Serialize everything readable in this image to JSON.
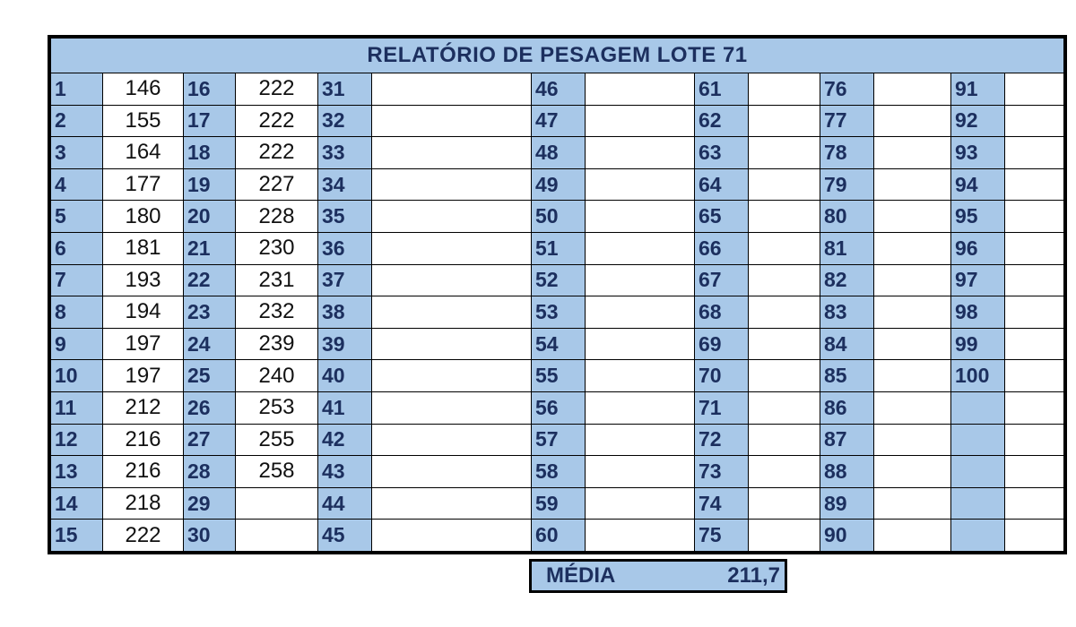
{
  "report": {
    "title": "RELATÓRIO DE PESAGEM LOTE 71",
    "columns": [
      {
        "nums": [
          "1",
          "2",
          "3",
          "4",
          "5",
          "6",
          "7",
          "8",
          "9",
          "10",
          "11",
          "12",
          "13",
          "14",
          "15"
        ],
        "values": [
          "146",
          "155",
          "164",
          "177",
          "180",
          "181",
          "193",
          "194",
          "197",
          "197",
          "212",
          "216",
          "216",
          "218",
          "222"
        ]
      },
      {
        "nums": [
          "16",
          "17",
          "18",
          "19",
          "20",
          "21",
          "22",
          "23",
          "24",
          "25",
          "26",
          "27",
          "28",
          "29",
          "30"
        ],
        "values": [
          "222",
          "222",
          "222",
          "227",
          "228",
          "230",
          "231",
          "232",
          "239",
          "240",
          "253",
          "255",
          "258",
          "",
          ""
        ]
      },
      {
        "nums": [
          "31",
          "32",
          "33",
          "34",
          "35",
          "36",
          "37",
          "38",
          "39",
          "40",
          "41",
          "42",
          "43",
          "44",
          "45"
        ],
        "values": [
          "",
          "",
          "",
          "",
          "",
          "",
          "",
          "",
          "",
          "",
          "",
          "",
          "",
          "",
          ""
        ]
      },
      {
        "nums": [
          "46",
          "47",
          "48",
          "49",
          "50",
          "51",
          "52",
          "53",
          "54",
          "55",
          "56",
          "57",
          "58",
          "59",
          "60"
        ],
        "values": [
          "",
          "",
          "",
          "",
          "",
          "",
          "",
          "",
          "",
          "",
          "",
          "",
          "",
          "",
          ""
        ]
      },
      {
        "nums": [
          "61",
          "62",
          "63",
          "64",
          "65",
          "66",
          "67",
          "68",
          "69",
          "70",
          "71",
          "72",
          "73",
          "74",
          "75"
        ],
        "values": [
          "",
          "",
          "",
          "",
          "",
          "",
          "",
          "",
          "",
          "",
          "",
          "",
          "",
          "",
          ""
        ]
      },
      {
        "nums": [
          "76",
          "77",
          "78",
          "79",
          "80",
          "81",
          "82",
          "83",
          "84",
          "85",
          "86",
          "87",
          "88",
          "89",
          "90"
        ],
        "values": [
          "",
          "",
          "",
          "",
          "",
          "",
          "",
          "",
          "",
          "",
          "",
          "",
          "",
          "",
          ""
        ]
      },
      {
        "nums": [
          "91",
          "92",
          "93",
          "94",
          "95",
          "96",
          "97",
          "98",
          "99",
          "100",
          "",
          "",
          "",
          "",
          ""
        ],
        "values": [
          "",
          "",
          "",
          "",
          "",
          "",
          "",
          "",
          "",
          "",
          "",
          "",
          "",
          "",
          ""
        ]
      }
    ],
    "media_label": "MÉDIA",
    "media_value": "211,7"
  },
  "colors": {
    "header_blue": "#a8c8e8",
    "text_navy": "#1c2f5e",
    "border": "#000000"
  }
}
